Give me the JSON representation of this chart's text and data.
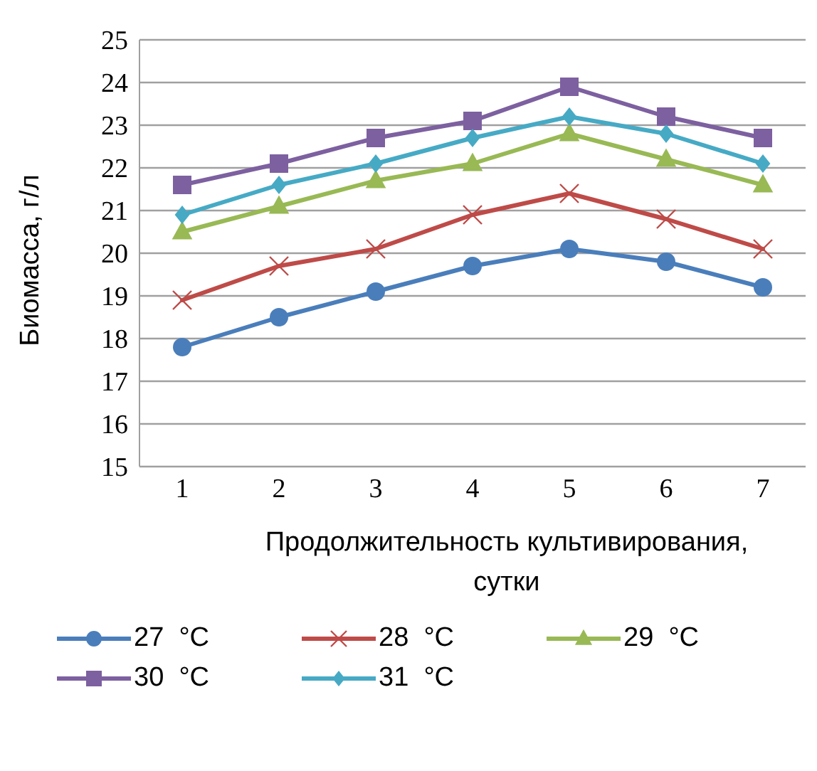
{
  "chart_data": {
    "type": "line",
    "xlabel": "Продолжительность культивирования, сутки",
    "ylabel": "Биомасса, г/л",
    "categories": [
      "1",
      "2",
      "3",
      "4",
      "5",
      "6",
      "7"
    ],
    "ylim": [
      15,
      25
    ],
    "yticks": [
      15,
      16,
      17,
      18,
      19,
      20,
      21,
      22,
      23,
      24,
      25
    ],
    "grid": "y",
    "legend": "bottom",
    "series": [
      {
        "name": "27  °C",
        "color": "#4a7ebb",
        "marker": "circle",
        "values": [
          17.8,
          18.5,
          19.1,
          19.7,
          20.1,
          19.8,
          19.2
        ]
      },
      {
        "name": "28  °C",
        "color": "#be4b48",
        "marker": "cross",
        "values": [
          18.9,
          19.7,
          20.1,
          20.9,
          21.4,
          20.8,
          20.1
        ]
      },
      {
        "name": "29  °C",
        "color": "#98b954",
        "marker": "triangle",
        "values": [
          20.5,
          21.1,
          21.7,
          22.1,
          22.8,
          22.2,
          21.6
        ]
      },
      {
        "name": "30  °C",
        "color": "#7d60a0",
        "marker": "square",
        "values": [
          21.6,
          22.1,
          22.7,
          23.1,
          23.9,
          23.2,
          22.7
        ]
      },
      {
        "name": "31  °C",
        "color": "#46aac5",
        "marker": "diamond",
        "values": [
          20.9,
          21.6,
          22.1,
          22.7,
          23.2,
          22.8,
          22.1
        ]
      }
    ]
  }
}
